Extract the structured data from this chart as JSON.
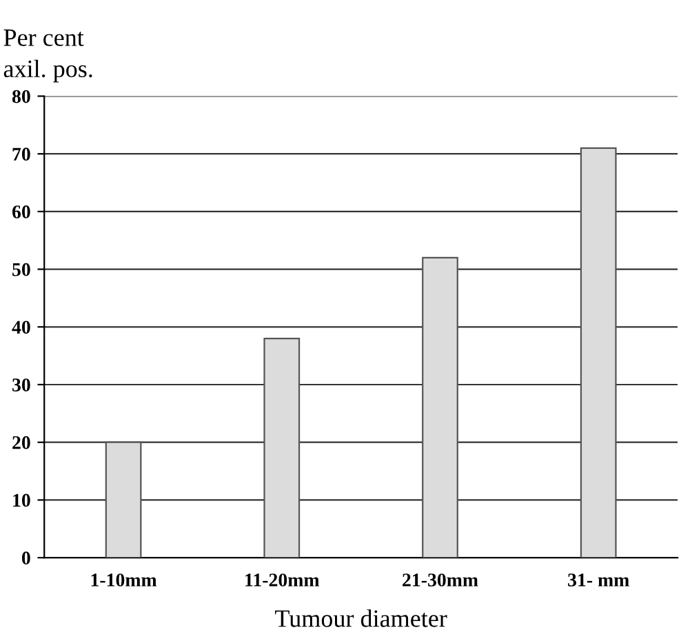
{
  "chart_data": {
    "type": "bar",
    "ylabel": "Per cent\naxil. pos.",
    "xlabel": "Tumour diameter",
    "categories": [
      "1-10mm",
      "11-20mm",
      "21-30mm",
      "31- mm"
    ],
    "values": [
      20,
      38,
      52,
      71
    ],
    "color": "#dcdcdc",
    "ylim": [
      0,
      80
    ],
    "yticks": [
      0,
      10,
      20,
      30,
      40,
      50,
      60,
      70,
      80
    ],
    "grid": "y"
  }
}
